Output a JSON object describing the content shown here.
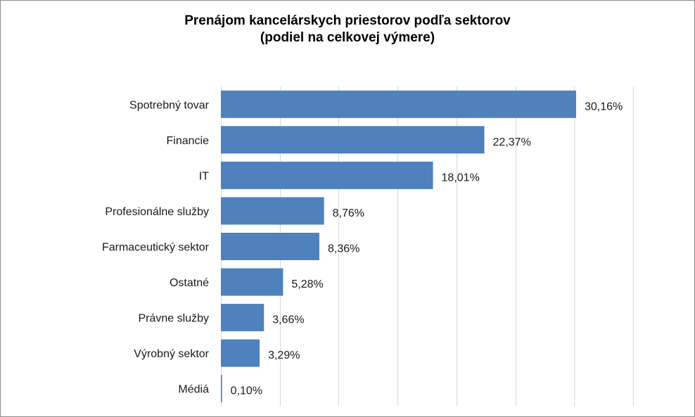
{
  "chart_data": {
    "type": "bar",
    "orientation": "horizontal",
    "title": [
      "Prenájom kancelárskych priestorov podľa sektorov",
      "(podiel na celkovej výmere)"
    ],
    "categories": [
      "Spotrebný tovar",
      "Financie",
      "IT",
      "Profesionálne služby",
      "Farmaceutický sektor",
      "Ostatné",
      "Právne služby",
      "Výrobný sektor",
      "Médiá"
    ],
    "values": [
      30.16,
      22.37,
      18.01,
      8.76,
      8.36,
      5.28,
      3.66,
      3.29,
      0.1
    ],
    "value_labels": [
      "30,16%",
      "22,37%",
      "18,01%",
      "8,76%",
      "8,36%",
      "5,28%",
      "3,66%",
      "3,29%",
      "0,10%"
    ],
    "xlim": [
      0,
      35
    ],
    "grid_step": 5,
    "grid": true,
    "bar_color": "#4f81bd"
  }
}
